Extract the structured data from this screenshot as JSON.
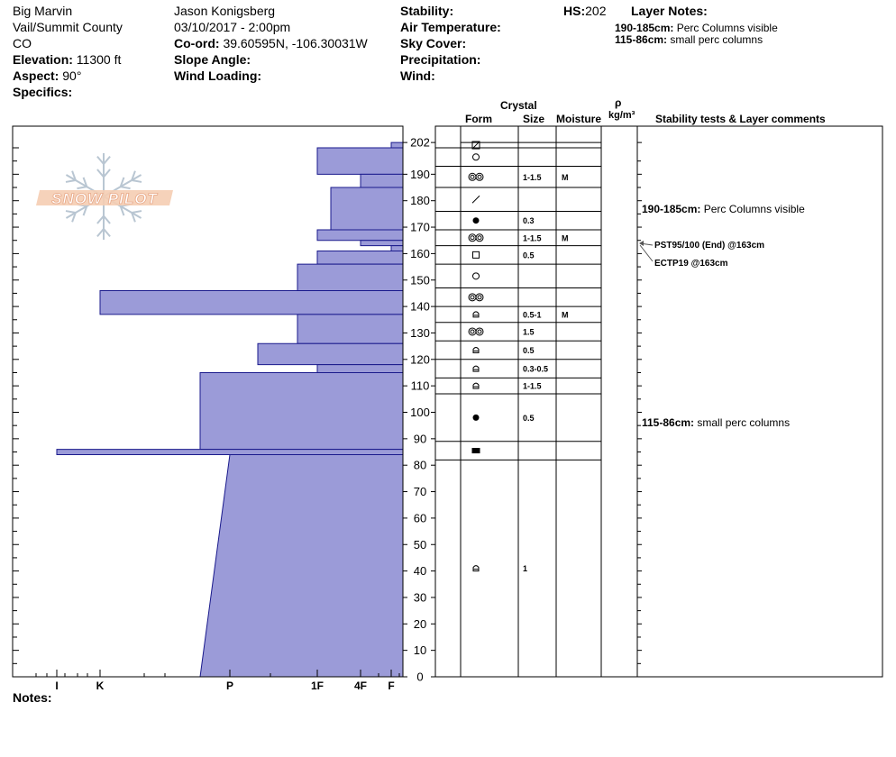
{
  "header": {
    "location_name": "Big Marvin",
    "region": "Vail/Summit County",
    "state": "CO",
    "elevation_label": "Elevation:",
    "elevation_value": "11300 ft",
    "aspect_label": "Aspect:",
    "aspect_value": "90°",
    "specifics_label": "Specifics:",
    "observer": "Jason Konigsberg",
    "datetime": "03/10/2017 - 2:00pm",
    "coord_label": "Co-ord:",
    "coord_value": "39.60595N, -106.30031W",
    "slope_label": "Slope Angle:",
    "wind_loading_label": "Wind Loading:",
    "stability_label": "Stability:",
    "air_temp_label": "Air Temperature:",
    "sky_label": "Sky Cover:",
    "precip_label": "Precipitation:",
    "wind_label": "Wind:",
    "hs_label": "HS:",
    "hs_value": "202",
    "layer_notes_label": "Layer Notes:",
    "layer_notes": [
      {
        "range": "190-185cm:",
        "text": "Perc Columns visible"
      },
      {
        "range": "115-86cm:",
        "text": "small perc columns"
      }
    ],
    "notes_label": "Notes:"
  },
  "columns": {
    "crystal": "Crystal",
    "form": "Form",
    "size": "Size",
    "moisture": "Moisture",
    "rho": "ρ",
    "density_unit": "kg/m³",
    "stability": "Stability tests & Layer comments"
  },
  "logo": {
    "text": "SNOW PILOT"
  },
  "chart_data": {
    "type": "bar",
    "description_axis": "hardness profile vs snow height",
    "y_axis": {
      "ticks": [
        0,
        10,
        20,
        30,
        40,
        50,
        60,
        70,
        80,
        90,
        100,
        110,
        120,
        130,
        140,
        150,
        160,
        170,
        180,
        190,
        202
      ],
      "ylim": [
        0,
        207
      ]
    },
    "x_axis": {
      "ticks": [
        "I",
        "K",
        "P",
        "1F",
        "4F",
        "F"
      ]
    },
    "hardness_layers": [
      {
        "top": 202,
        "bottom": 200,
        "hardness": "F"
      },
      {
        "top": 200,
        "bottom": 190,
        "hardness": "1F"
      },
      {
        "top": 190,
        "bottom": 185,
        "hardness": "4F"
      },
      {
        "top": 185,
        "bottom": 169,
        "hardness": "1F+"
      },
      {
        "top": 169,
        "bottom": 165,
        "hardness": "1F"
      },
      {
        "top": 165,
        "bottom": 163,
        "hardness": "4F"
      },
      {
        "top": 163,
        "bottom": 161,
        "hardness": "F"
      },
      {
        "top": 161,
        "bottom": 156,
        "hardness": "1F"
      },
      {
        "top": 156,
        "bottom": 146,
        "hardness": "1F-"
      },
      {
        "top": 146,
        "bottom": 137,
        "hardness": "K"
      },
      {
        "top": 137,
        "bottom": 126,
        "hardness": "1F-"
      },
      {
        "top": 126,
        "bottom": 118,
        "hardness": "P+"
      },
      {
        "top": 118,
        "bottom": 115,
        "hardness": "1F"
      },
      {
        "top": 115,
        "bottom": 86,
        "hardness": "P-"
      },
      {
        "top": 86,
        "bottom": 84,
        "hardness": "I"
      },
      {
        "top": 84,
        "bottom": 0,
        "hardness": "P",
        "bottom_hardness": "P-"
      }
    ],
    "layers": [
      {
        "top": 202,
        "bottom": 200,
        "form": "boxslash",
        "size": "",
        "moisture": ""
      },
      {
        "top": 200,
        "bottom": 193,
        "form": "circle",
        "size": "",
        "moisture": ""
      },
      {
        "top": 193,
        "bottom": 185,
        "form": "doublecircle",
        "size": "1-1.5",
        "moisture": "M"
      },
      {
        "top": 185,
        "bottom": 176,
        "form": "slash",
        "size": "",
        "moisture": ""
      },
      {
        "top": 176,
        "bottom": 169,
        "form": "dot",
        "size": "0.3",
        "moisture": ""
      },
      {
        "top": 169,
        "bottom": 163,
        "form": "doublecircle",
        "size": "1-1.5",
        "moisture": "M"
      },
      {
        "top": 163,
        "bottom": 156,
        "form": "square",
        "size": "0.5",
        "moisture": ""
      },
      {
        "top": 156,
        "bottom": 147,
        "form": "circle",
        "size": "",
        "moisture": ""
      },
      {
        "top": 147,
        "bottom": 140,
        "form": "doublecircle",
        "size": "",
        "moisture": ""
      },
      {
        "top": 140,
        "bottom": 134,
        "form": "cup",
        "size": "0.5-1",
        "moisture": "M"
      },
      {
        "top": 134,
        "bottom": 127,
        "form": "doublecircle",
        "size": "1.5",
        "moisture": ""
      },
      {
        "top": 127,
        "bottom": 120,
        "form": "cup",
        "size": "0.5",
        "moisture": ""
      },
      {
        "top": 120,
        "bottom": 113,
        "form": "cup",
        "size": "0.3-0.5",
        "moisture": ""
      },
      {
        "top": 113,
        "bottom": 107,
        "form": "cup",
        "size": "1-1.5",
        "moisture": ""
      },
      {
        "top": 107,
        "bottom": 89,
        "form": "dot",
        "size": "0.5",
        "moisture": ""
      },
      {
        "top": 89,
        "bottom": 82,
        "form": "rect",
        "size": "",
        "moisture": ""
      },
      {
        "top": 82,
        "bottom": 0,
        "form": "cup",
        "size": "1",
        "moisture": ""
      }
    ],
    "tests": [
      {
        "text": "PST95/100 (End) @163cm",
        "depth": 163
      },
      {
        "text": "ECTP19 @163cm",
        "depth": 163
      }
    ],
    "comments": [
      {
        "range": "190-185cm:",
        "text": "Perc Columns visible",
        "depth": 187.5
      },
      {
        "range": "115-86cm:",
        "text": "small perc columns",
        "depth": 100.5
      }
    ]
  }
}
